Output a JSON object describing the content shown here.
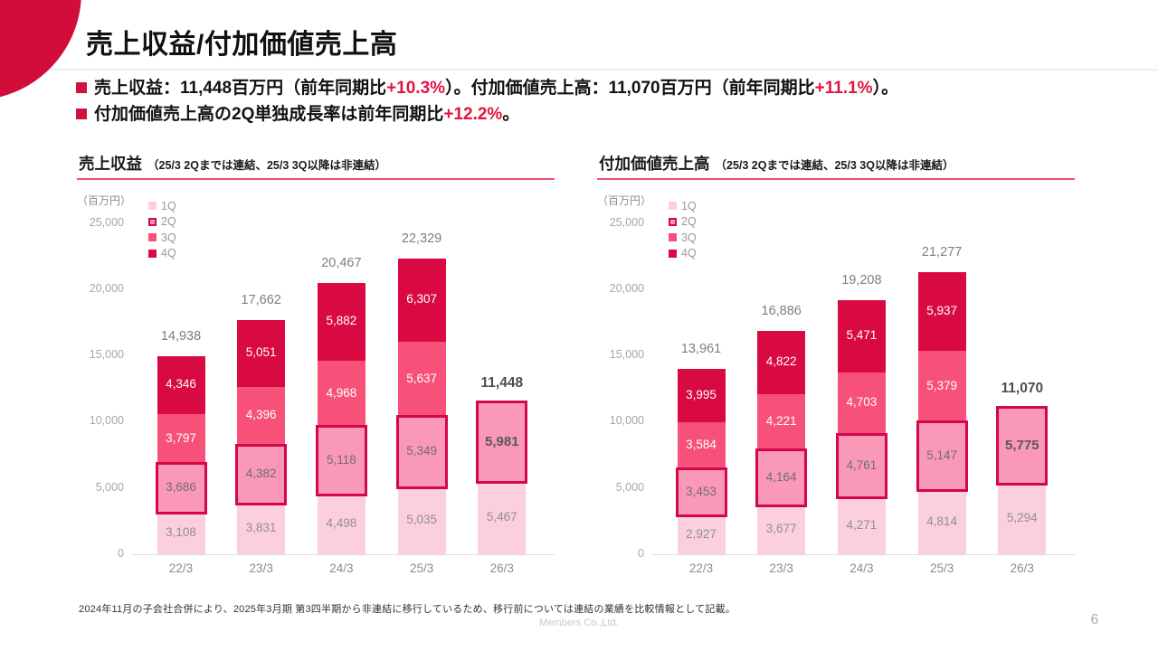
{
  "slide": {
    "title": "売上収益/付加価値売上高",
    "footnote": "2024年11月の子会社合併により、2025年3月期 第3四半期から非連結に移行しているため、移行前については連結の業績を比較情報として記載。",
    "company": "Members Co.,Ltd.",
    "page_number": "6"
  },
  "bullets": [
    {
      "segments": [
        {
          "text": "売上収益：11,448百万円（前年同期比",
          "red": false
        },
        {
          "text": "+10.3%",
          "red": true
        },
        {
          "text": "）。付加価値売上高：11,070百万円（前年同期比",
          "red": false
        },
        {
          "text": "+11.1%",
          "red": true
        },
        {
          "text": "）。",
          "red": false
        }
      ]
    },
    {
      "segments": [
        {
          "text": "付加価値売上高の2Q単独成長率は前年同期比",
          "red": false
        },
        {
          "text": "+12.2%",
          "red": true
        },
        {
          "text": "。",
          "red": false
        }
      ]
    }
  ],
  "colors": {
    "accent_red_text": "#E0153F",
    "corner_circle": "#D30D39",
    "bullet_marker": "#D0123F",
    "q1_fill": "#FBD0DC",
    "q2_fill": "#F998B7",
    "q2_border": "#D4074B",
    "q3_fill": "#F85179",
    "q4_fill": "#D90A42",
    "q1_label": "#8F8F8F",
    "q2_label": "#6F6F6F",
    "q34_label": "#FFFFFF",
    "total_label": "#7F7F7F",
    "total_label_bold": "#4D4D4D"
  },
  "chart_data": [
    {
      "type": "bar",
      "stacked": true,
      "title": "売上収益",
      "subtitle": "（25/3 2Qまでは連結、25/3 3Q以降は非連結）",
      "unit": "（百万円）",
      "legend": [
        "1Q",
        "2Q",
        "3Q",
        "4Q"
      ],
      "legend_position": "top-left",
      "grid": false,
      "categories": [
        "22/3",
        "23/3",
        "24/3",
        "25/3",
        "26/3"
      ],
      "series": [
        {
          "name": "1Q",
          "values": [
            3108,
            3831,
            4498,
            5035,
            5467
          ]
        },
        {
          "name": "2Q",
          "values": [
            3686,
            4382,
            5118,
            5349,
            5981
          ],
          "highlighted": true
        },
        {
          "name": "3Q",
          "values": [
            3797,
            4396,
            4968,
            5637,
            null
          ]
        },
        {
          "name": "4Q",
          "values": [
            4346,
            5051,
            5882,
            6307,
            null
          ]
        }
      ],
      "totals": [
        14938,
        17662,
        20467,
        22329,
        11448
      ],
      "bold_total_index": 4,
      "ylim": [
        0,
        25000
      ],
      "ytick_values": [
        0,
        5000,
        10000,
        15000,
        20000,
        25000
      ],
      "ytick_labels": [
        "0",
        "5,000",
        "10,000",
        "15,000",
        "20,000",
        "25,000"
      ]
    },
    {
      "type": "bar",
      "stacked": true,
      "title": "付加価値売上高",
      "subtitle": "（25/3 2Qまでは連結、25/3 3Q以降は非連結）",
      "unit": "（百万円）",
      "legend": [
        "1Q",
        "2Q",
        "3Q",
        "4Q"
      ],
      "legend_position": "top-left",
      "grid": false,
      "categories": [
        "22/3",
        "23/3",
        "24/3",
        "25/3",
        "26/3"
      ],
      "series": [
        {
          "name": "1Q",
          "values": [
            2927,
            3677,
            4271,
            4814,
            5294
          ]
        },
        {
          "name": "2Q",
          "values": [
            3453,
            4164,
            4761,
            5147,
            5775
          ],
          "highlighted": true
        },
        {
          "name": "3Q",
          "values": [
            3584,
            4221,
            4703,
            5379,
            null
          ]
        },
        {
          "name": "4Q",
          "values": [
            3995,
            4822,
            5471,
            5937,
            null
          ]
        }
      ],
      "totals": [
        13961,
        16886,
        19208,
        21277,
        11070
      ],
      "bold_total_index": 4,
      "ylim": [
        0,
        25000
      ],
      "ytick_values": [
        0,
        5000,
        10000,
        15000,
        20000,
        25000
      ],
      "ytick_labels": [
        "0",
        "5,000",
        "10,000",
        "15,000",
        "20,000",
        "25,000"
      ]
    }
  ]
}
